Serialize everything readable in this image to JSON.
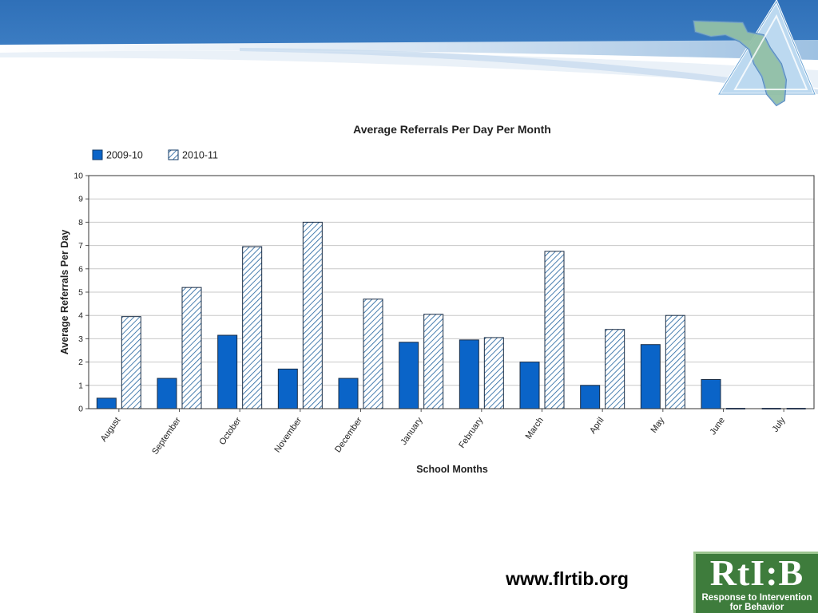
{
  "branding": {
    "website": "www.flrtib.org",
    "logo_main": "RtI:B",
    "logo_line1": "Response to Intervention",
    "logo_line2": "for Behavior"
  },
  "colors": {
    "banner_blue": "#2f70b8",
    "series_2009": "#0a64c8",
    "series_2010_stripe": "#1c5f9c",
    "logo_green": "#3e7c3c"
  },
  "chart_data": {
    "type": "bar",
    "title": "Average Referrals Per Day Per Month",
    "xlabel": "School Months",
    "ylabel": "Average Referrals Per Day",
    "ylim": [
      0,
      10
    ],
    "yticks": [
      0,
      1,
      2,
      3,
      4,
      5,
      6,
      7,
      8,
      9,
      10
    ],
    "grid": true,
    "legend_position": "top-left",
    "categories": [
      "August",
      "September",
      "October",
      "November",
      "December",
      "January",
      "February",
      "March",
      "April",
      "May",
      "June",
      "July"
    ],
    "series": [
      {
        "name": "2009-10",
        "values": [
          0.45,
          1.3,
          3.15,
          1.7,
          1.3,
          2.85,
          2.95,
          2.0,
          1.0,
          2.75,
          1.25,
          0
        ],
        "style": "solid"
      },
      {
        "name": "2010-11",
        "values": [
          3.95,
          5.2,
          6.95,
          8.0,
          4.7,
          4.05,
          3.05,
          6.75,
          3.4,
          4.0,
          0,
          0
        ],
        "style": "hatched"
      }
    ]
  }
}
